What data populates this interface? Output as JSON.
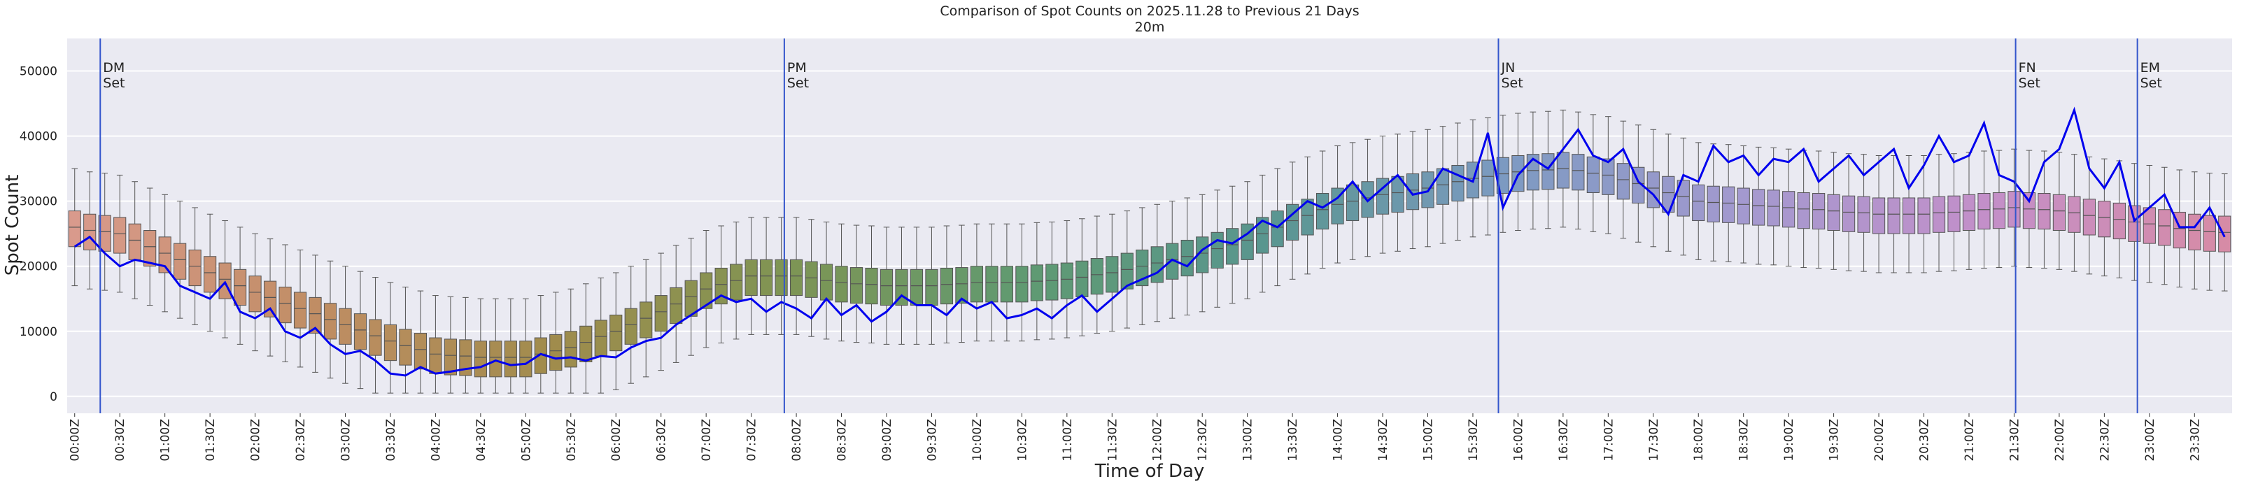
{
  "chart_data": {
    "type": "box",
    "title": "Comparison of Spot Counts on 2025.11.28 to Previous 21 Days",
    "subtitle": "20m",
    "x_label": "Time of Day",
    "y_label": "Spot Count",
    "ylim": [
      -2600,
      55000
    ],
    "yticks": [
      0,
      10000,
      20000,
      30000,
      40000,
      50000
    ],
    "grid": true,
    "palette": [
      "#d99a8c",
      "#c08d64",
      "#a08c4c",
      "#7e9554",
      "#5f9a72",
      "#599690",
      "#7d9ac2",
      "#a499cf",
      "#c38fc9",
      "#d68ba6"
    ],
    "categories": [
      "00:00Z",
      null,
      null,
      "00:30Z",
      null,
      null,
      "01:00Z",
      null,
      null,
      "01:30Z",
      null,
      null,
      "02:00Z",
      null,
      null,
      "02:30Z",
      null,
      null,
      "03:00Z",
      null,
      null,
      "03:30Z",
      null,
      null,
      "04:00Z",
      null,
      null,
      "04:30Z",
      null,
      null,
      "05:00Z",
      null,
      null,
      "05:30Z",
      null,
      null,
      "06:00Z",
      null,
      null,
      "06:30Z",
      null,
      null,
      "07:00Z",
      null,
      null,
      "07:30Z",
      null,
      null,
      "08:00Z",
      null,
      null,
      "08:30Z",
      null,
      null,
      "09:00Z",
      null,
      null,
      "09:30Z",
      null,
      null,
      "10:00Z",
      null,
      null,
      "10:30Z",
      null,
      null,
      "11:00Z",
      null,
      null,
      "11:30Z",
      null,
      null,
      "12:00Z",
      null,
      null,
      "12:30Z",
      null,
      null,
      "13:00Z",
      null,
      null,
      "13:30Z",
      null,
      null,
      "14:00Z",
      null,
      null,
      "14:30Z",
      null,
      null,
      "15:00Z",
      null,
      null,
      "15:30Z",
      null,
      null,
      "16:00Z",
      null,
      null,
      "16:30Z",
      null,
      null,
      "17:00Z",
      null,
      null,
      "17:30Z",
      null,
      null,
      "18:00Z",
      null,
      null,
      "18:30Z",
      null,
      null,
      "19:00Z",
      null,
      null,
      "19:30Z",
      null,
      null,
      "20:00Z",
      null,
      null,
      "20:30Z",
      null,
      null,
      "21:00Z",
      null,
      null,
      "21:30Z",
      null,
      null,
      "22:00Z",
      null,
      null,
      "22:30Z",
      null,
      null,
      "23:00Z",
      null,
      null,
      "23:30Z",
      null,
      null
    ],
    "boxes": {
      "low": [
        17000,
        16500,
        16300,
        16000,
        15000,
        14000,
        13000,
        12000,
        11000,
        10000,
        9000,
        8000,
        7000,
        6200,
        5300,
        4500,
        3700,
        2800,
        2000,
        1200,
        500,
        500,
        500,
        500,
        500,
        500,
        500,
        500,
        500,
        500,
        500,
        500,
        500,
        500,
        500,
        500,
        1000,
        2000,
        3000,
        4000,
        5200,
        6300,
        7500,
        8200,
        8800,
        9500,
        9500,
        9500,
        9500,
        9200,
        8800,
        8500,
        8300,
        8200,
        8000,
        8000,
        8000,
        8000,
        8200,
        8300,
        8500,
        8500,
        8500,
        8500,
        8700,
        8800,
        9000,
        9300,
        9700,
        10000,
        10500,
        11000,
        11500,
        12000,
        12500,
        13000,
        13700,
        14300,
        15000,
        16000,
        17000,
        18000,
        18800,
        19700,
        20500,
        21000,
        21500,
        22000,
        22300,
        22700,
        23000,
        23500,
        24000,
        24500,
        24800,
        25200,
        25500,
        25700,
        25800,
        26000,
        25700,
        25300,
        25000,
        24300,
        23700,
        23000,
        22300,
        21700,
        21000,
        20800,
        20700,
        20500,
        20300,
        20200,
        20000,
        19800,
        19700,
        19500,
        19300,
        19200,
        19000,
        19000,
        19000,
        19000,
        19200,
        19300,
        19500,
        19700,
        19800,
        20000,
        19800,
        19700,
        19500,
        19200,
        18800,
        18500,
        18200,
        17800,
        17500,
        17200,
        16800,
        16500,
        16300,
        16200
      ],
      "q1": [
        23000,
        22500,
        22300,
        22000,
        21000,
        20000,
        19000,
        18000,
        17000,
        16000,
        15000,
        14000,
        13000,
        12200,
        11300,
        10500,
        9700,
        8800,
        8000,
        7200,
        6300,
        5500,
        4800,
        4200,
        3500,
        3300,
        3200,
        3000,
        3000,
        3000,
        3000,
        3500,
        4000,
        4500,
        5300,
        6200,
        7000,
        8000,
        9000,
        10000,
        11200,
        12300,
        13500,
        14200,
        14800,
        15500,
        15500,
        15500,
        15500,
        15200,
        14800,
        14500,
        14300,
        14200,
        14000,
        14000,
        14000,
        14000,
        14200,
        14300,
        14500,
        14500,
        14500,
        14500,
        14700,
        14800,
        15000,
        15300,
        15700,
        16000,
        16500,
        17000,
        17500,
        18000,
        18500,
        19000,
        19700,
        20300,
        21000,
        22000,
        23000,
        24000,
        24800,
        25700,
        26500,
        27000,
        27500,
        28000,
        28300,
        28700,
        29000,
        29500,
        30000,
        30500,
        30800,
        31200,
        31500,
        31700,
        31800,
        32000,
        31700,
        31300,
        31000,
        30300,
        29700,
        29000,
        28300,
        27700,
        27000,
        26800,
        26700,
        26500,
        26300,
        26200,
        26000,
        25800,
        25700,
        25500,
        25300,
        25200,
        25000,
        25000,
        25000,
        25000,
        25200,
        25300,
        25500,
        25700,
        25800,
        26000,
        25800,
        25700,
        25500,
        25200,
        24800,
        24500,
        24200,
        23800,
        23500,
        23200,
        22800,
        22500,
        22300,
        22200
      ],
      "median": [
        26000,
        25500,
        25300,
        25000,
        24000,
        23000,
        22000,
        21000,
        20000,
        19000,
        18000,
        17000,
        16000,
        15200,
        14300,
        13500,
        12700,
        11800,
        11000,
        10200,
        9300,
        8500,
        7800,
        7200,
        6500,
        6300,
        6200,
        6000,
        6000,
        6000,
        6000,
        6500,
        7000,
        7500,
        8300,
        9200,
        10000,
        11000,
        12000,
        13000,
        14200,
        15300,
        16500,
        17200,
        17800,
        18500,
        18500,
        18500,
        18500,
        18200,
        17800,
        17500,
        17300,
        17200,
        17000,
        17000,
        17000,
        17000,
        17200,
        17300,
        17500,
        17500,
        17500,
        17500,
        17700,
        17800,
        18000,
        18300,
        18700,
        19000,
        19500,
        20000,
        20500,
        21000,
        21500,
        22000,
        22700,
        23300,
        24000,
        25000,
        26000,
        27000,
        27800,
        28700,
        29500,
        30000,
        30500,
        31000,
        31300,
        31700,
        32000,
        32500,
        33000,
        33500,
        33800,
        34200,
        34500,
        34700,
        34800,
        35000,
        34700,
        34300,
        34000,
        33300,
        32700,
        32000,
        31300,
        30700,
        30000,
        29800,
        29700,
        29500,
        29300,
        29200,
        29000,
        28800,
        28700,
        28500,
        28300,
        28200,
        28000,
        28000,
        28000,
        28000,
        28200,
        28300,
        28500,
        28700,
        28800,
        29000,
        28800,
        28700,
        28500,
        28200,
        27800,
        27500,
        27200,
        26800,
        26500,
        26200,
        25800,
        25500,
        25300,
        25200
      ],
      "q3": [
        28500,
        28000,
        27800,
        27500,
        26500,
        25500,
        24500,
        23500,
        22500,
        21500,
        20500,
        19500,
        18500,
        17700,
        16800,
        16000,
        15200,
        14300,
        13500,
        12700,
        11800,
        11000,
        10300,
        9700,
        9000,
        8800,
        8700,
        8500,
        8500,
        8500,
        8500,
        9000,
        9500,
        10000,
        10800,
        11700,
        12500,
        13500,
        14500,
        15500,
        16700,
        17800,
        19000,
        19700,
        20300,
        21000,
        21000,
        21000,
        21000,
        20700,
        20300,
        20000,
        19800,
        19700,
        19500,
        19500,
        19500,
        19500,
        19700,
        19800,
        20000,
        20000,
        20000,
        20000,
        20200,
        20300,
        20500,
        20800,
        21200,
        21500,
        22000,
        22500,
        23000,
        23500,
        24000,
        24500,
        25200,
        25800,
        26500,
        27500,
        28500,
        29500,
        30300,
        31200,
        32000,
        32500,
        33000,
        33500,
        33800,
        34200,
        34500,
        35000,
        35500,
        36000,
        36300,
        36700,
        37000,
        37200,
        37300,
        37500,
        37200,
        36800,
        36500,
        35800,
        35200,
        34500,
        33800,
        33200,
        32500,
        32300,
        32200,
        32000,
        31800,
        31700,
        31500,
        31300,
        31200,
        31000,
        30800,
        30700,
        30500,
        30500,
        30500,
        30500,
        30700,
        30800,
        31000,
        31200,
        31300,
        31500,
        31300,
        31200,
        31000,
        30700,
        30300,
        30000,
        29700,
        29300,
        29000,
        28700,
        28300,
        28000,
        27800,
        27700
      ],
      "high": [
        35000,
        34500,
        34300,
        34000,
        33000,
        32000,
        31000,
        30000,
        29000,
        28000,
        27000,
        26000,
        25000,
        24200,
        23300,
        22500,
        21700,
        20800,
        20000,
        19200,
        18300,
        17500,
        16800,
        16200,
        15500,
        15300,
        15200,
        15000,
        15000,
        15000,
        15000,
        15500,
        16000,
        16500,
        17300,
        18200,
        19000,
        20000,
        21000,
        22000,
        23200,
        24300,
        25500,
        26200,
        26800,
        27500,
        27500,
        27500,
        27500,
        27200,
        26800,
        26500,
        26300,
        26200,
        26000,
        26000,
        26000,
        26000,
        26200,
        26300,
        26500,
        26500,
        26500,
        26500,
        26700,
        26800,
        27000,
        27300,
        27700,
        28000,
        28500,
        29000,
        29500,
        30000,
        30500,
        31000,
        31700,
        32300,
        33000,
        34000,
        35000,
        36000,
        36800,
        37700,
        38500,
        39000,
        39500,
        40000,
        40300,
        40700,
        41000,
        41500,
        42000,
        42500,
        42800,
        43200,
        43500,
        43700,
        43800,
        44000,
        43700,
        43300,
        43000,
        42300,
        41700,
        41000,
        40300,
        39700,
        39000,
        38800,
        38700,
        38500,
        38300,
        38200,
        38000,
        37800,
        37700,
        37500,
        37300,
        37200,
        37000,
        37000,
        37000,
        37000,
        37200,
        37300,
        37500,
        37700,
        37800,
        38000,
        37800,
        37700,
        37500,
        37200,
        36800,
        36500,
        36200,
        35800,
        35500,
        35200,
        34800,
        34500,
        34300,
        34200
      ]
    },
    "line": {
      "color": "#0000ee",
      "values": [
        23000,
        24500,
        22000,
        20000,
        21000,
        20500,
        20000,
        17000,
        16000,
        15000,
        17500,
        13000,
        12000,
        13500,
        10000,
        9000,
        10500,
        8000,
        6500,
        7000,
        5500,
        3500,
        3200,
        4500,
        3500,
        3800,
        4200,
        4500,
        5500,
        4800,
        5000,
        6500,
        5800,
        6000,
        5500,
        6200,
        6000,
        7500,
        8500,
        9000,
        11000,
        12500,
        14000,
        15500,
        14500,
        15000,
        13000,
        14500,
        13500,
        12000,
        15000,
        12500,
        14000,
        11500,
        13000,
        15500,
        14000,
        14000,
        12500,
        15000,
        13500,
        14500,
        12000,
        12500,
        13500,
        12000,
        14000,
        15500,
        13000,
        15000,
        17000,
        18000,
        19000,
        21000,
        20000,
        22500,
        24000,
        23500,
        25000,
        27000,
        26000,
        28000,
        30000,
        29000,
        30500,
        33000,
        30000,
        32000,
        34000,
        31000,
        31500,
        35000,
        34000,
        33000,
        40500,
        29000,
        34000,
        36500,
        35000,
        38000,
        41000,
        37000,
        36000,
        38000,
        33000,
        31000,
        28000,
        34000,
        33000,
        38500,
        36000,
        37000,
        34000,
        36500,
        36000,
        38000,
        33000,
        35000,
        37000,
        34000,
        36000,
        38000,
        32000,
        35500,
        40000,
        36000,
        37000,
        42000,
        34000,
        33000,
        30000,
        36000,
        38000,
        44000,
        35000,
        32000,
        36000,
        27000,
        29000,
        31000,
        26000,
        26000,
        29000,
        24500
      ]
    },
    "vlines": {
      "color": "#3355cc",
      "items": [
        {
          "x": 1.7,
          "label": [
            "DM",
            "Set"
          ]
        },
        {
          "x": 47.2,
          "label": [
            "PM",
            "Set"
          ]
        },
        {
          "x": 94.7,
          "label": [
            "JN",
            "Set"
          ]
        },
        {
          "x": 129.1,
          "label": [
            "FN",
            "Set"
          ]
        },
        {
          "x": 137.2,
          "label": [
            "EM",
            "Set"
          ]
        }
      ]
    }
  }
}
